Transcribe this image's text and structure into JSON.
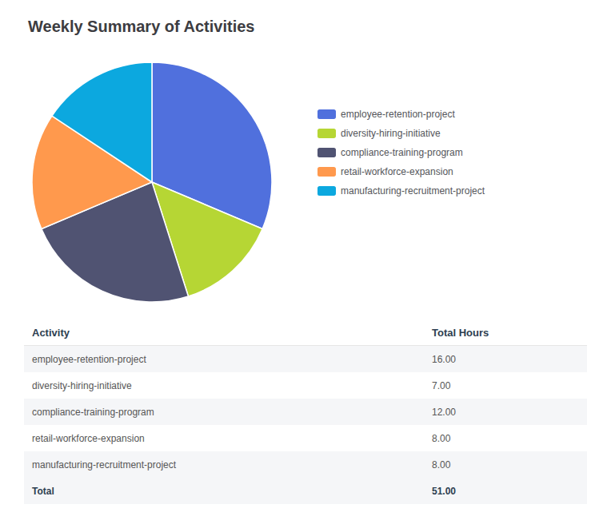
{
  "chart_data": {
    "type": "pie",
    "title": "Weekly Summary of Activities",
    "categories": [
      "employee-retention-project",
      "diversity-hiring-initiative",
      "compliance-training-program",
      "retail-workforce-expansion",
      "manufacturing-recruitment-project"
    ],
    "values": [
      16,
      7,
      12,
      8,
      8
    ],
    "legend": "right",
    "table": {
      "headers": [
        "Activity",
        "Total Hours"
      ],
      "rows": [
        [
          "employee-retention-project",
          "16.00"
        ],
        [
          "diversity-hiring-initiative",
          "7.00"
        ],
        [
          "compliance-training-program",
          "12.00"
        ],
        [
          "retail-workforce-expansion",
          "8.00"
        ],
        [
          "manufacturing-recruitment-project",
          "8.00"
        ]
      ],
      "total": [
        "Total",
        "51.00"
      ]
    }
  }
}
